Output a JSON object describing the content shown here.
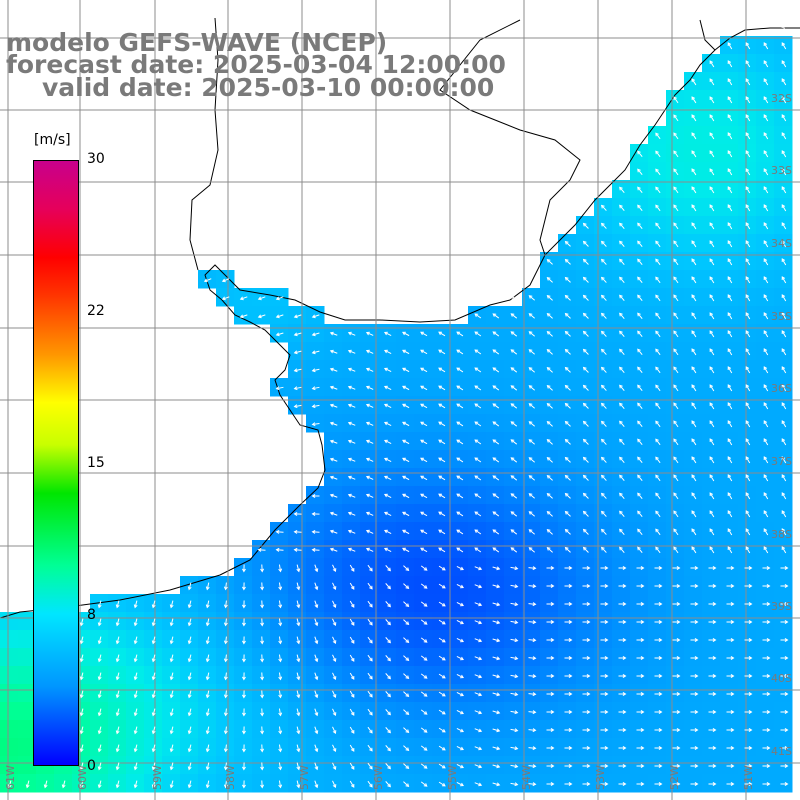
{
  "title": {
    "model": "modelo GEFS-WAVE (NCEP)",
    "forecast": "forecast date: 2025-03-04 12:00:00",
    "valid": "valid date: 2025-03-10 00:00:00"
  },
  "colorbar": {
    "unit": "[m/s]",
    "min": 0,
    "max": 30,
    "ticks": [
      "30",
      "22",
      "15",
      "8",
      "0"
    ],
    "colors": [
      "#0000ff",
      "#0096ff",
      "#00e6ff",
      "#00ff96",
      "#00e600",
      "#ffff00",
      "#ff6400",
      "#ff0000",
      "#c8008c"
    ]
  },
  "map": {
    "lat_labels": [
      "32S",
      "33S",
      "34S",
      "35S",
      "36S",
      "37S",
      "38S",
      "39S",
      "40S",
      "41S"
    ],
    "lon_labels": [
      "61W",
      "60W",
      "59W",
      "58W",
      "57W",
      "56W",
      "55W",
      "54W",
      "53W",
      "52W",
      "51W"
    ],
    "land_color": "#ffffff",
    "grid_color": "#8c8c8c",
    "arrow_color": "#ffffff"
  }
}
